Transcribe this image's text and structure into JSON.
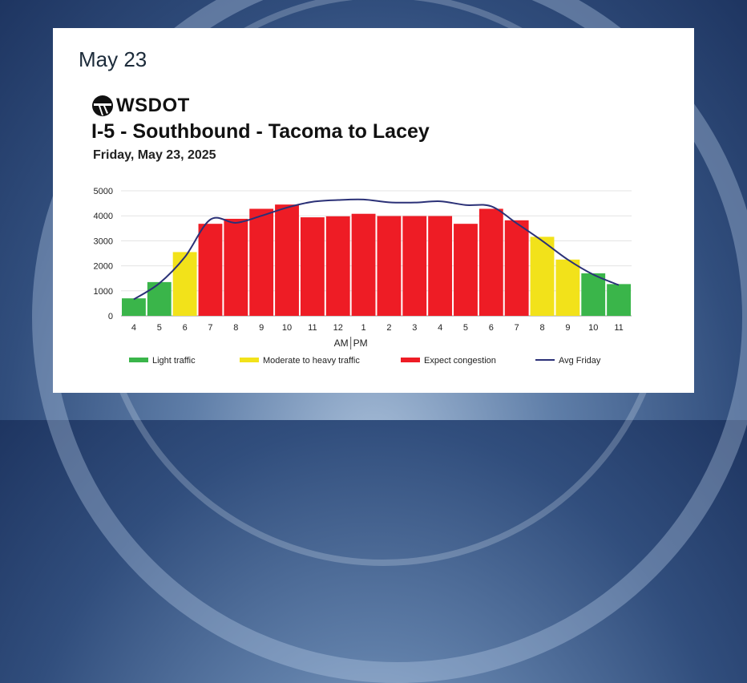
{
  "card": {
    "heading": "May 23",
    "brand": "WSDOT",
    "logo_icon": "wsdot-logo-icon"
  },
  "chart_data": {
    "type": "bar",
    "title": "I-5 - Southbound - Tacoma to Lacey",
    "subtitle": "Friday, May 23, 2025",
    "categories": [
      "4",
      "5",
      "6",
      "7",
      "8",
      "9",
      "10",
      "11",
      "12",
      "1",
      "2",
      "3",
      "4",
      "5",
      "6",
      "7",
      "8",
      "9",
      "10",
      "11"
    ],
    "values": [
      700,
      1350,
      2550,
      3680,
      3880,
      4280,
      4450,
      3940,
      3980,
      4080,
      3990,
      3990,
      3990,
      3680,
      4280,
      3820,
      3160,
      2250,
      1700,
      1270
    ],
    "levels": [
      "light",
      "light",
      "moderate",
      "congestion",
      "congestion",
      "congestion",
      "congestion",
      "congestion",
      "congestion",
      "congestion",
      "congestion",
      "congestion",
      "congestion",
      "congestion",
      "congestion",
      "congestion",
      "moderate",
      "moderate",
      "light",
      "light"
    ],
    "avg_friday": [
      660,
      1300,
      2350,
      3850,
      3720,
      4000,
      4330,
      4560,
      4630,
      4650,
      4540,
      4530,
      4580,
      4430,
      4380,
      3700,
      3000,
      2250,
      1650,
      1230
    ],
    "yticks": [
      0,
      1000,
      2000,
      3000,
      4000,
      5000
    ],
    "ylim": [
      0,
      5000
    ],
    "x_divider_label_left": "AM",
    "x_divider_label_right": "PM",
    "grid": true,
    "legend_position": "bottom",
    "legend": [
      {
        "key": "light",
        "label": "Light traffic",
        "color": "#3ab54a",
        "kind": "bar"
      },
      {
        "key": "moderate",
        "label": "Moderate to heavy traffic",
        "color": "#f2e21a",
        "kind": "bar"
      },
      {
        "key": "congestion",
        "label": "Expect congestion",
        "color": "#ee1c25",
        "kind": "bar"
      },
      {
        "key": "avg",
        "label": "Avg Friday",
        "color": "#2b3177",
        "kind": "line"
      }
    ]
  }
}
